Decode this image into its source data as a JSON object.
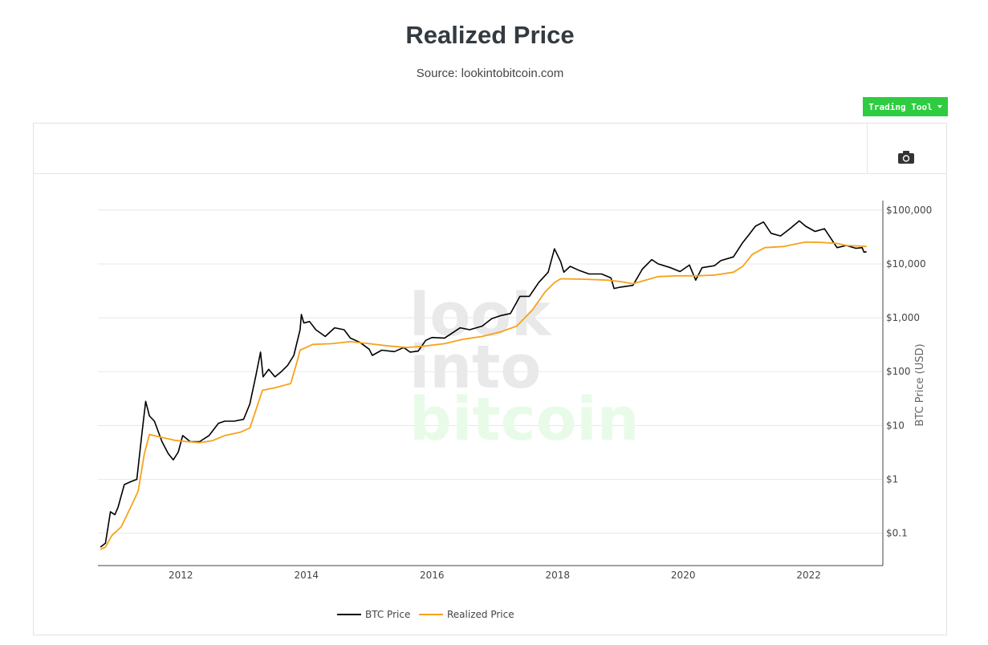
{
  "header": {
    "title": "Realized Price",
    "subtitle": "Source: lookintobitcoin.com"
  },
  "toolbar": {
    "trading_tool_label": "Trading Tool",
    "camera_icon": "camera-icon"
  },
  "watermark": {
    "line1": "look",
    "line2": "into",
    "line3": "bitcoin"
  },
  "colors": {
    "btc_price": "#000000",
    "realized_price": "#f7a21b",
    "accent": "#2ecc40",
    "watermark_gray": "#e9e9e9",
    "watermark_green": "#e8fbe8"
  },
  "chart_data": {
    "type": "line",
    "y_scale": "log",
    "x_ticks": [
      "2012",
      "2014",
      "2016",
      "2018",
      "2020",
      "2022"
    ],
    "y_ticks": [
      {
        "value": 0.1,
        "label": "$0.1"
      },
      {
        "value": 1,
        "label": "$1"
      },
      {
        "value": 10,
        "label": "$10"
      },
      {
        "value": 100,
        "label": "$100"
      },
      {
        "value": 1000,
        "label": "$1,000"
      },
      {
        "value": 10000,
        "label": "$10,000"
      },
      {
        "value": 100000,
        "label": "$100,000"
      }
    ],
    "ylabel": "BTC Price (USD)",
    "xlim": [
      2010.68,
      2023.18
    ],
    "ylim": [
      0.025,
      150000
    ],
    "grid": true,
    "legend_position": "bottom-center",
    "series": [
      {
        "name": "BTC Price",
        "color": "#000000",
        "points": [
          [
            2010.72,
            0.055
          ],
          [
            2010.8,
            0.065
          ],
          [
            2010.88,
            0.25
          ],
          [
            2010.95,
            0.22
          ],
          [
            2011.0,
            0.3
          ],
          [
            2011.1,
            0.8
          ],
          [
            2011.2,
            0.9
          ],
          [
            2011.3,
            1.0
          ],
          [
            2011.38,
            7.0
          ],
          [
            2011.44,
            28
          ],
          [
            2011.5,
            15
          ],
          [
            2011.58,
            12
          ],
          [
            2011.7,
            5.0
          ],
          [
            2011.8,
            3.0
          ],
          [
            2011.88,
            2.3
          ],
          [
            2011.96,
            3.2
          ],
          [
            2012.03,
            6.5
          ],
          [
            2012.15,
            5.0
          ],
          [
            2012.3,
            5.0
          ],
          [
            2012.45,
            6.5
          ],
          [
            2012.6,
            11
          ],
          [
            2012.7,
            12
          ],
          [
            2012.85,
            12
          ],
          [
            2013.0,
            13
          ],
          [
            2013.1,
            25
          ],
          [
            2013.2,
            90
          ],
          [
            2013.27,
            230
          ],
          [
            2013.31,
            80
          ],
          [
            2013.4,
            110
          ],
          [
            2013.5,
            80
          ],
          [
            2013.6,
            100
          ],
          [
            2013.7,
            130
          ],
          [
            2013.8,
            200
          ],
          [
            2013.9,
            600
          ],
          [
            2013.92,
            1150
          ],
          [
            2013.96,
            800
          ],
          [
            2014.05,
            850
          ],
          [
            2014.15,
            600
          ],
          [
            2014.3,
            450
          ],
          [
            2014.45,
            650
          ],
          [
            2014.6,
            600
          ],
          [
            2014.7,
            420
          ],
          [
            2014.85,
            350
          ],
          [
            2015.0,
            260
          ],
          [
            2015.05,
            200
          ],
          [
            2015.2,
            250
          ],
          [
            2015.4,
            235
          ],
          [
            2015.55,
            280
          ],
          [
            2015.65,
            230
          ],
          [
            2015.78,
            240
          ],
          [
            2015.9,
            380
          ],
          [
            2016.0,
            430
          ],
          [
            2016.2,
            420
          ],
          [
            2016.45,
            650
          ],
          [
            2016.6,
            600
          ],
          [
            2016.8,
            700
          ],
          [
            2016.95,
            960
          ],
          [
            2017.1,
            1100
          ],
          [
            2017.25,
            1200
          ],
          [
            2017.4,
            2500
          ],
          [
            2017.55,
            2500
          ],
          [
            2017.7,
            4500
          ],
          [
            2017.85,
            7000
          ],
          [
            2017.95,
            19000
          ],
          [
            2018.05,
            11000
          ],
          [
            2018.1,
            7000
          ],
          [
            2018.2,
            9000
          ],
          [
            2018.35,
            7500
          ],
          [
            2018.5,
            6500
          ],
          [
            2018.7,
            6500
          ],
          [
            2018.85,
            5500
          ],
          [
            2018.9,
            3500
          ],
          [
            2019.0,
            3700
          ],
          [
            2019.2,
            4000
          ],
          [
            2019.35,
            8000
          ],
          [
            2019.5,
            12000
          ],
          [
            2019.6,
            10000
          ],
          [
            2019.8,
            8500
          ],
          [
            2019.95,
            7200
          ],
          [
            2020.1,
            9500
          ],
          [
            2020.2,
            5000
          ],
          [
            2020.3,
            8500
          ],
          [
            2020.5,
            9300
          ],
          [
            2020.6,
            11500
          ],
          [
            2020.8,
            13500
          ],
          [
            2020.95,
            25000
          ],
          [
            2021.05,
            35000
          ],
          [
            2021.15,
            50000
          ],
          [
            2021.28,
            60000
          ],
          [
            2021.4,
            37000
          ],
          [
            2021.55,
            33000
          ],
          [
            2021.7,
            45000
          ],
          [
            2021.85,
            63000
          ],
          [
            2021.95,
            50000
          ],
          [
            2022.1,
            40000
          ],
          [
            2022.25,
            45000
          ],
          [
            2022.35,
            30000
          ],
          [
            2022.45,
            20000
          ],
          [
            2022.6,
            22000
          ],
          [
            2022.75,
            19500
          ],
          [
            2022.85,
            20000
          ],
          [
            2022.88,
            16500
          ],
          [
            2022.92,
            16800
          ]
        ]
      },
      {
        "name": "Realized Price",
        "color": "#f7a21b",
        "points": [
          [
            2010.72,
            0.05
          ],
          [
            2010.8,
            0.055
          ],
          [
            2010.9,
            0.09
          ],
          [
            2011.05,
            0.13
          ],
          [
            2011.2,
            0.3
          ],
          [
            2011.32,
            0.6
          ],
          [
            2011.42,
            3.0
          ],
          [
            2011.5,
            6.8
          ],
          [
            2011.7,
            6.0
          ],
          [
            2011.9,
            5.3
          ],
          [
            2012.1,
            5.0
          ],
          [
            2012.3,
            4.8
          ],
          [
            2012.5,
            5.2
          ],
          [
            2012.7,
            6.5
          ],
          [
            2012.95,
            7.5
          ],
          [
            2013.1,
            9.0
          ],
          [
            2013.2,
            20
          ],
          [
            2013.3,
            45
          ],
          [
            2013.5,
            50
          ],
          [
            2013.75,
            60
          ],
          [
            2013.85,
            150
          ],
          [
            2013.9,
            250
          ],
          [
            2014.1,
            320
          ],
          [
            2014.4,
            330
          ],
          [
            2014.7,
            360
          ],
          [
            2015.0,
            330
          ],
          [
            2015.3,
            300
          ],
          [
            2015.6,
            280
          ],
          [
            2015.9,
            300
          ],
          [
            2016.2,
            330
          ],
          [
            2016.5,
            400
          ],
          [
            2016.8,
            450
          ],
          [
            2017.1,
            550
          ],
          [
            2017.35,
            700
          ],
          [
            2017.6,
            1400
          ],
          [
            2017.8,
            3000
          ],
          [
            2017.95,
            4500
          ],
          [
            2018.05,
            5300
          ],
          [
            2018.4,
            5200
          ],
          [
            2018.8,
            5000
          ],
          [
            2019.0,
            4700
          ],
          [
            2019.2,
            4300
          ],
          [
            2019.4,
            5000
          ],
          [
            2019.6,
            5800
          ],
          [
            2019.9,
            6000
          ],
          [
            2020.2,
            6000
          ],
          [
            2020.5,
            6200
          ],
          [
            2020.8,
            7000
          ],
          [
            2020.95,
            9000
          ],
          [
            2021.1,
            15000
          ],
          [
            2021.3,
            20000
          ],
          [
            2021.6,
            21000
          ],
          [
            2021.8,
            23500
          ],
          [
            2021.95,
            25500
          ],
          [
            2022.2,
            25000
          ],
          [
            2022.45,
            24000
          ],
          [
            2022.6,
            22000
          ],
          [
            2022.8,
            21500
          ],
          [
            2022.92,
            21000
          ]
        ]
      }
    ]
  }
}
